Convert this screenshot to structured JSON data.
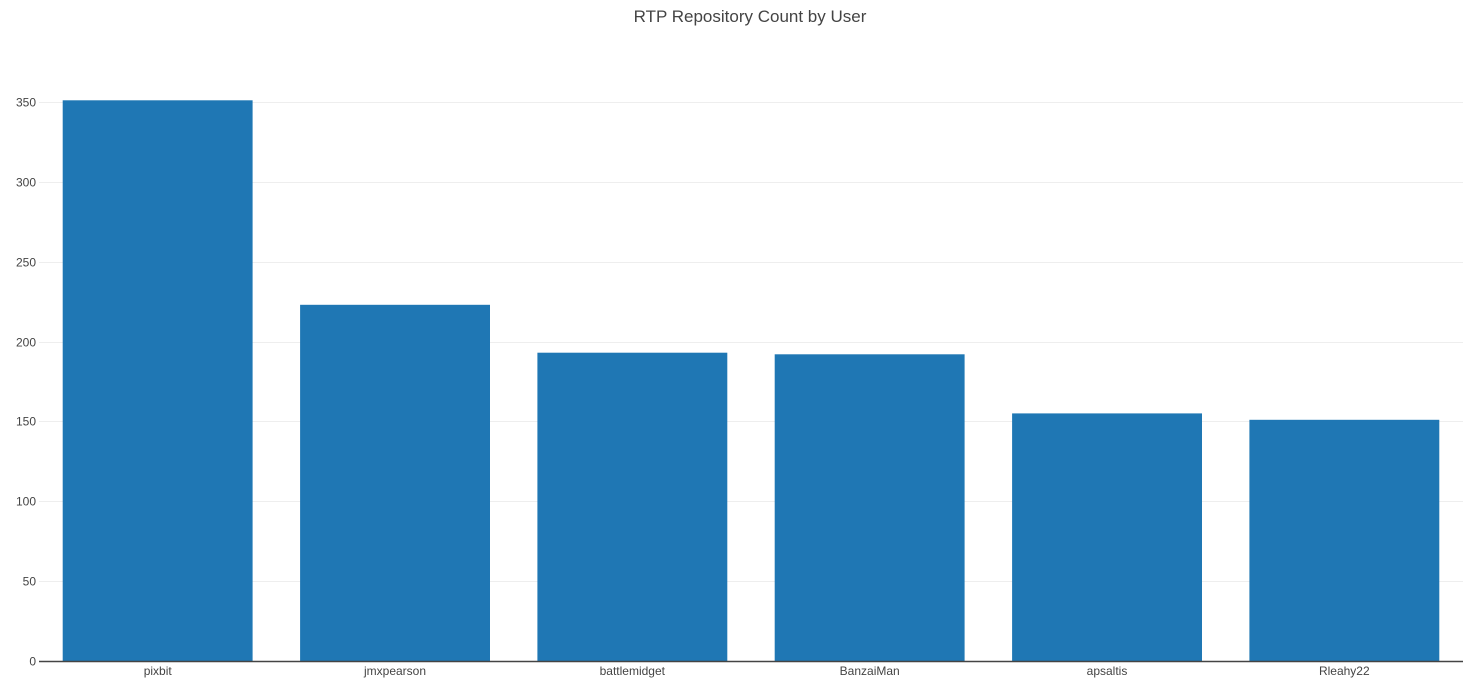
{
  "chart_data": {
    "type": "bar",
    "title": "RTP Repository Count by User",
    "xlabel": "",
    "ylabel": "",
    "categories": [
      "pixbit",
      "jmxpearson",
      "battlemidget",
      "BanzaiMan",
      "apsaltis",
      "Rleahy22"
    ],
    "values": [
      351,
      223,
      193,
      192,
      155,
      151
    ],
    "ylim": [
      0,
      370
    ],
    "yticks": [
      0,
      50,
      100,
      150,
      200,
      250,
      300,
      350
    ],
    "grid": true,
    "legend": "none"
  },
  "colors": {
    "bar": "#1f77b4",
    "grid": "#eeeeee",
    "axis": "#444444",
    "text": "#444444",
    "background": "#ffffff"
  }
}
